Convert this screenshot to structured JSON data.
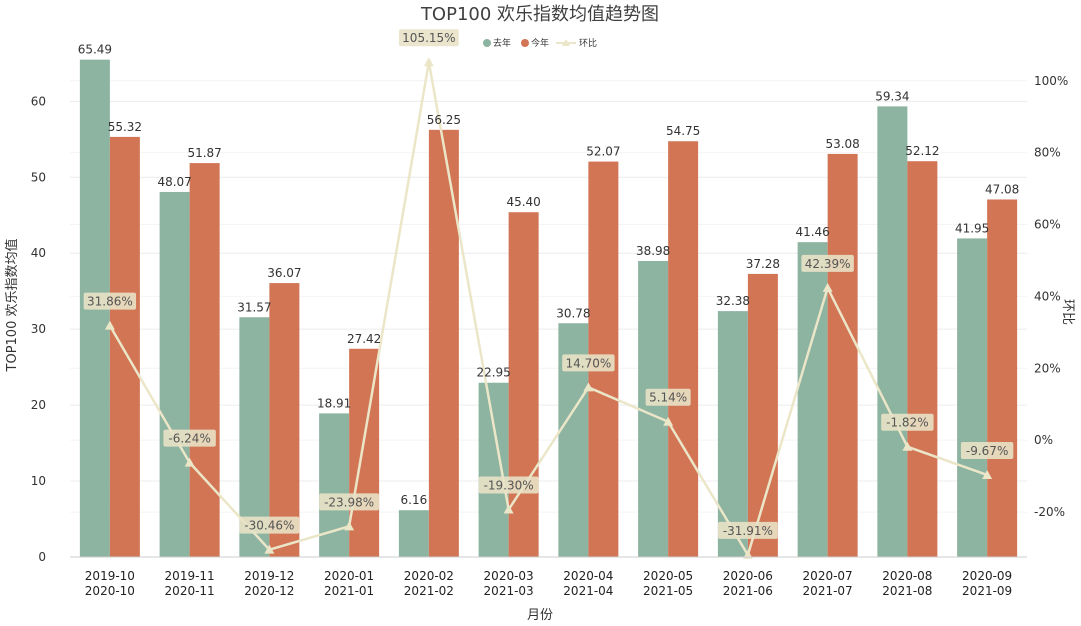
{
  "chart_data": {
    "type": "bar",
    "title": "TOP100 欢乐指数均值趋势图",
    "xlabel": "月份",
    "ylabel": "TOP100 欢乐指数均值",
    "y2label": "环比",
    "ylim": [
      0,
      66.5
    ],
    "y2lim": [
      -32.5,
      108
    ],
    "yticks": [
      "0",
      "10",
      "20",
      "30",
      "40",
      "50",
      "60"
    ],
    "y2ticks": [
      "-20%",
      "0%",
      "20%",
      "40%",
      "60%",
      "80%",
      "100%"
    ],
    "legend_position": "top-center",
    "grid": true,
    "categories": [
      [
        "2019-10",
        "2020-10"
      ],
      [
        "2019-11",
        "2020-11"
      ],
      [
        "2019-12",
        "2020-12"
      ],
      [
        "2020-01",
        "2021-01"
      ],
      [
        "2020-02",
        "2021-02"
      ],
      [
        "2020-03",
        "2021-03"
      ],
      [
        "2020-04",
        "2021-04"
      ],
      [
        "2020-05",
        "2021-05"
      ],
      [
        "2020-06",
        "2021-06"
      ],
      [
        "2020-07",
        "2021-07"
      ],
      [
        "2020-08",
        "2021-08"
      ],
      [
        "2020-09",
        "2021-09"
      ]
    ],
    "series": [
      {
        "name": "去年",
        "kind": "bar",
        "color": "#8db3a1",
        "values": [
          65.49,
          48.07,
          31.57,
          18.91,
          6.16,
          22.95,
          30.78,
          38.98,
          32.38,
          41.46,
          59.34,
          41.95
        ],
        "labels": [
          "65.49",
          "48.07",
          "31.57",
          "18.91",
          "6.16",
          "22.95",
          "30.78",
          "38.98",
          "32.38",
          "41.46",
          "59.34",
          "41.95"
        ]
      },
      {
        "name": "今年",
        "kind": "bar",
        "color": "#d27555",
        "values": [
          55.32,
          51.87,
          36.07,
          27.42,
          56.25,
          45.4,
          52.07,
          54.75,
          37.28,
          53.08,
          52.12,
          47.08
        ],
        "labels": [
          "55.32",
          "51.87",
          "36.07",
          "27.42",
          "56.25",
          "45.40",
          "52.07",
          "54.75",
          "37.28",
          "53.08",
          "52.12",
          "47.08"
        ]
      },
      {
        "name": "环比",
        "kind": "line",
        "axis": "right",
        "color": "#ebe6c8",
        "values": [
          31.86,
          -6.24,
          -30.46,
          -23.98,
          105.15,
          -19.3,
          14.7,
          5.14,
          -31.91,
          42.39,
          -1.82,
          -9.67
        ],
        "labels": [
          "31.86%",
          "-6.24%",
          "-30.46%",
          "-23.98%",
          "105.15%",
          "-19.30%",
          "14.70%",
          "5.14%",
          "-31.91%",
          "42.39%",
          "-1.82%",
          "-9.67%"
        ]
      }
    ]
  }
}
